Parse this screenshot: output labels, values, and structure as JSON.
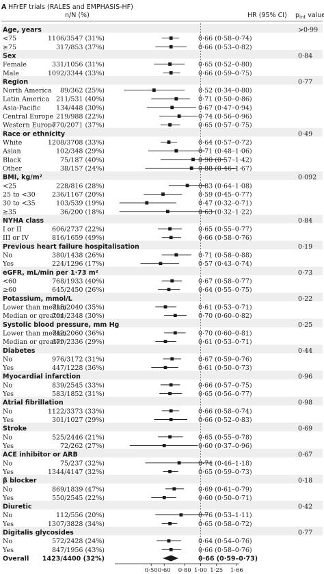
{
  "panel_label": "A",
  "panel_title": "HFrEF trials (RALES and EMPHASIS-HF)",
  "header": {
    "n": "n/N (%)",
    "hr": "HR (95% CI)",
    "p_prefix": "p",
    "p_sub": "int",
    "p_suffix": " value"
  },
  "chart_data": {
    "type": "forest",
    "x_ticks": [
      "0·50",
      "0·60",
      "0·80",
      "1·00",
      "1·25",
      "1·66"
    ],
    "x_tick_values": [
      0.5,
      0.6,
      0.8,
      1.0,
      1.25,
      1.66
    ],
    "xlim": [
      0.3,
      1.72
    ],
    "x_scale": "log",
    "reference_line": 1.0,
    "rows": [
      {
        "kind": "group",
        "label": "Age, years",
        "p": ">0·99"
      },
      {
        "kind": "sub",
        "label": "<75",
        "n": "1106/3547 (31%)",
        "hr": "0·66 (0·58–0·74)",
        "est": 0.66,
        "lo": 0.58,
        "hi": 0.74
      },
      {
        "kind": "sub",
        "label": "≥75",
        "n": "317/853 (37%)",
        "hr": "0·66 (0·53–0·82)",
        "est": 0.66,
        "lo": 0.53,
        "hi": 0.82
      },
      {
        "kind": "group",
        "label": "Sex",
        "p": "0·84"
      },
      {
        "kind": "sub",
        "label": "Female",
        "n": "331/1056 (31%)",
        "hr": "0·65 (0·52–0·80)",
        "est": 0.65,
        "lo": 0.52,
        "hi": 0.8
      },
      {
        "kind": "sub",
        "label": "Male",
        "n": "1092/3344 (33%)",
        "hr": "0·66 (0·59–0·75)",
        "est": 0.66,
        "lo": 0.59,
        "hi": 0.75
      },
      {
        "kind": "group",
        "label": "Region",
        "p": "0·77"
      },
      {
        "kind": "sub",
        "label": "North America",
        "n": "89/362 (25%)",
        "hr": "0·52 (0·34–0·80)",
        "est": 0.52,
        "lo": 0.34,
        "hi": 0.8
      },
      {
        "kind": "sub",
        "label": "Latin America",
        "n": "211/531 (40%)",
        "hr": "0·71 (0·50–0·86)",
        "est": 0.71,
        "lo": 0.5,
        "hi": 0.86
      },
      {
        "kind": "sub",
        "label": "Asia-Pacific",
        "n": "134/448 (30%)",
        "hr": "0·67 (0·47–0·94)",
        "est": 0.67,
        "lo": 0.47,
        "hi": 0.94
      },
      {
        "kind": "sub",
        "label": "Central Europe",
        "n": "219/988 (22%)",
        "hr": "0·74 (0·56–0·96)",
        "est": 0.74,
        "lo": 0.56,
        "hi": 0.96
      },
      {
        "kind": "sub",
        "label": "Western Europe",
        "n": "770/2071 (37%)",
        "hr": "0·65 (0·57–0·75)",
        "est": 0.65,
        "lo": 0.57,
        "hi": 0.75
      },
      {
        "kind": "group",
        "label": "Race or ethnicity",
        "p": "0·49"
      },
      {
        "kind": "sub",
        "label": "White",
        "n": "1208/3708 (33%)",
        "hr": "0·64 (0·57–0·72)",
        "est": 0.64,
        "lo": 0.57,
        "hi": 0.72
      },
      {
        "kind": "sub",
        "label": "Asian",
        "n": "102/348 (29%)",
        "hr": "0·71 (0·48–1·06)",
        "est": 0.71,
        "lo": 0.48,
        "hi": 1.06
      },
      {
        "kind": "sub",
        "label": "Black",
        "n": "75/187 (40%)",
        "hr": "0·90 (0·57–1·42)",
        "est": 0.9,
        "lo": 0.57,
        "hi": 1.42
      },
      {
        "kind": "sub",
        "label": "Other",
        "n": "38/157 (24%)",
        "hr": "0·88 (0·46–1·67)",
        "est": 0.88,
        "lo": 0.46,
        "hi": 1.67
      },
      {
        "kind": "group",
        "label": "BMI, kg/m²",
        "p": "0·092"
      },
      {
        "kind": "sub",
        "label": "<25",
        "n": "228/816 (28%)",
        "hr": "0·83 (0·64–1·08)",
        "est": 0.83,
        "lo": 0.64,
        "hi": 1.08
      },
      {
        "kind": "sub",
        "label": "25 to <30",
        "n": "236/1167 (20%)",
        "hr": "0·59 (0·45–0·77)",
        "est": 0.59,
        "lo": 0.45,
        "hi": 0.77
      },
      {
        "kind": "sub",
        "label": "30 to <35",
        "n": "103/539 (19%)",
        "hr": "0·47 (0·32–0·71)",
        "est": 0.47,
        "lo": 0.32,
        "hi": 0.71
      },
      {
        "kind": "sub",
        "label": "≥35",
        "n": "36/200 (18%)",
        "hr": "0·63 (0·32–1·22)",
        "est": 0.63,
        "lo": 0.32,
        "hi": 1.22
      },
      {
        "kind": "group",
        "label": "NYHA class",
        "p": "0·84"
      },
      {
        "kind": "sub",
        "label": "I or II",
        "n": "606/2737 (22%)",
        "hr": "0·65 (0·55–0·77)",
        "est": 0.65,
        "lo": 0.55,
        "hi": 0.77
      },
      {
        "kind": "sub",
        "label": "III or IV",
        "n": "816/1659 (49%)",
        "hr": "0·66 (0·58–0·76)",
        "est": 0.66,
        "lo": 0.58,
        "hi": 0.76
      },
      {
        "kind": "group",
        "label": "Previous heart failure hospitalisation",
        "p": "0·19"
      },
      {
        "kind": "sub",
        "label": "No",
        "n": "380/1438 (26%)",
        "hr": "0·71 (0·58–0·88)",
        "est": 0.71,
        "lo": 0.58,
        "hi": 0.88
      },
      {
        "kind": "sub",
        "label": "Yes",
        "n": "224/1296 (17%)",
        "hr": "0·57 (0·43–0·74)",
        "est": 0.57,
        "lo": 0.43,
        "hi": 0.74
      },
      {
        "kind": "group",
        "label": "eGFR, mL/min per 1·73 m²",
        "p": "0·73"
      },
      {
        "kind": "sub",
        "label": "<60",
        "n": "768/1933 (40%)",
        "hr": "0·67 (0·58–0·77)",
        "est": 0.67,
        "lo": 0.58,
        "hi": 0.77
      },
      {
        "kind": "sub",
        "label": "≥60",
        "n": "645/2450 (26%)",
        "hr": "0·64 (0·55–0·75)",
        "est": 0.64,
        "lo": 0.55,
        "hi": 0.75
      },
      {
        "kind": "group",
        "label": "Potassium, mmol/L",
        "p": "0·22"
      },
      {
        "kind": "sub",
        "label": "Lower than median",
        "n": "715/2040 (35%)",
        "hr": "0·61 (0·53–0·71)",
        "est": 0.61,
        "lo": 0.53,
        "hi": 0.71
      },
      {
        "kind": "sub",
        "label": "Median or greater",
        "n": "704/2348 (30%)",
        "hr": "0·70 (0·60–0·82)",
        "est": 0.7,
        "lo": 0.6,
        "hi": 0.82
      },
      {
        "kind": "group",
        "label": "Systolic blood pressure, mm Hg",
        "p": "0·25"
      },
      {
        "kind": "sub",
        "label": "Lower than median",
        "n": "742/2060 (36%)",
        "hr": "0·70 (0·60–0·81)",
        "est": 0.7,
        "lo": 0.6,
        "hi": 0.81
      },
      {
        "kind": "sub",
        "label": "Median or greater",
        "n": "679/2336 (29%)",
        "hr": "0·61 (0·53–0·71)",
        "est": 0.61,
        "lo": 0.53,
        "hi": 0.71
      },
      {
        "kind": "group",
        "label": "Diabetes",
        "p": "0·44"
      },
      {
        "kind": "sub",
        "label": "No",
        "n": "976/3172 (31%)",
        "hr": "0·67 (0·59–0·76)",
        "est": 0.67,
        "lo": 0.59,
        "hi": 0.76
      },
      {
        "kind": "sub",
        "label": "Yes",
        "n": "447/1228 (36%)",
        "hr": "0·61 (0·50–0·73)",
        "est": 0.61,
        "lo": 0.5,
        "hi": 0.73
      },
      {
        "kind": "group",
        "label": "Myocardial infarction",
        "p": "0·96"
      },
      {
        "kind": "sub",
        "label": "No",
        "n": "839/2545 (33%)",
        "hr": "0·66 (0·57–0·75)",
        "est": 0.66,
        "lo": 0.57,
        "hi": 0.75
      },
      {
        "kind": "sub",
        "label": "Yes",
        "n": "583/1852 (31%)",
        "hr": "0·65 (0·56–0·77)",
        "est": 0.65,
        "lo": 0.56,
        "hi": 0.77
      },
      {
        "kind": "group",
        "label": "Atrial fibrillation",
        "p": "0·98"
      },
      {
        "kind": "sub",
        "label": "No",
        "n": "1122/3373 (33%)",
        "hr": "0·66 (0·58–0·74)",
        "est": 0.66,
        "lo": 0.58,
        "hi": 0.74
      },
      {
        "kind": "sub",
        "label": "Yes",
        "n": "301/1027 (29%)",
        "hr": "0·66 (0·52–0·83)",
        "est": 0.66,
        "lo": 0.52,
        "hi": 0.83
      },
      {
        "kind": "group",
        "label": "Stroke",
        "p": "0·69"
      },
      {
        "kind": "sub",
        "label": "No",
        "n": "525/2446 (21%)",
        "hr": "0·65 (0·55–0·78)",
        "est": 0.65,
        "lo": 0.55,
        "hi": 0.78
      },
      {
        "kind": "sub",
        "label": "Yes",
        "n": "72/262 (27%)",
        "hr": "0·60 (0·37–0·96)",
        "est": 0.6,
        "lo": 0.37,
        "hi": 0.96
      },
      {
        "kind": "group",
        "label": "ACE inhibitor or ARB",
        "p": "0·67"
      },
      {
        "kind": "sub",
        "label": "No",
        "n": "75/237 (32%)",
        "hr": "0·74 (0·46–1·18)",
        "est": 0.74,
        "lo": 0.46,
        "hi": 1.18
      },
      {
        "kind": "sub",
        "label": "Yes",
        "n": "1344/4147 (32%)",
        "hr": "0·65 (0·59–0·73)",
        "est": 0.65,
        "lo": 0.59,
        "hi": 0.73
      },
      {
        "kind": "group",
        "label": "β blocker",
        "p": "0·18"
      },
      {
        "kind": "sub",
        "label": "No",
        "n": "869/1839 (47%)",
        "hr": "0·69 (0·61–0·79)",
        "est": 0.69,
        "lo": 0.61,
        "hi": 0.79
      },
      {
        "kind": "sub",
        "label": "Yes",
        "n": "550/2545 (22%)",
        "hr": "0·60 (0·50–0·71)",
        "est": 0.6,
        "lo": 0.5,
        "hi": 0.71
      },
      {
        "kind": "group",
        "label": "Diuretic",
        "p": "0·42"
      },
      {
        "kind": "sub",
        "label": "No",
        "n": "112/556 (20%)",
        "hr": "0·76 (0·53–1·11)",
        "est": 0.76,
        "lo": 0.53,
        "hi": 1.11
      },
      {
        "kind": "sub",
        "label": "Yes",
        "n": "1307/3828 (34%)",
        "hr": "0·65 (0·58–0·72)",
        "est": 0.65,
        "lo": 0.58,
        "hi": 0.72
      },
      {
        "kind": "group",
        "label": "Digitalis glycosides",
        "p": "0·77"
      },
      {
        "kind": "sub",
        "label": "No",
        "n": "572/2428 (24%)",
        "hr": "0·64 (0·54–0·76)",
        "est": 0.64,
        "lo": 0.54,
        "hi": 0.76
      },
      {
        "kind": "sub",
        "label": "Yes",
        "n": "847/1956 (43%)",
        "hr": "0·66 (0·58–0·76)",
        "est": 0.66,
        "lo": 0.58,
        "hi": 0.76
      },
      {
        "kind": "overall",
        "label": "Overall",
        "n": "1423/4400 (32%)",
        "hr": "0·66 (0·59–0·73)",
        "est": 0.66,
        "lo": 0.59,
        "hi": 0.73
      }
    ]
  }
}
